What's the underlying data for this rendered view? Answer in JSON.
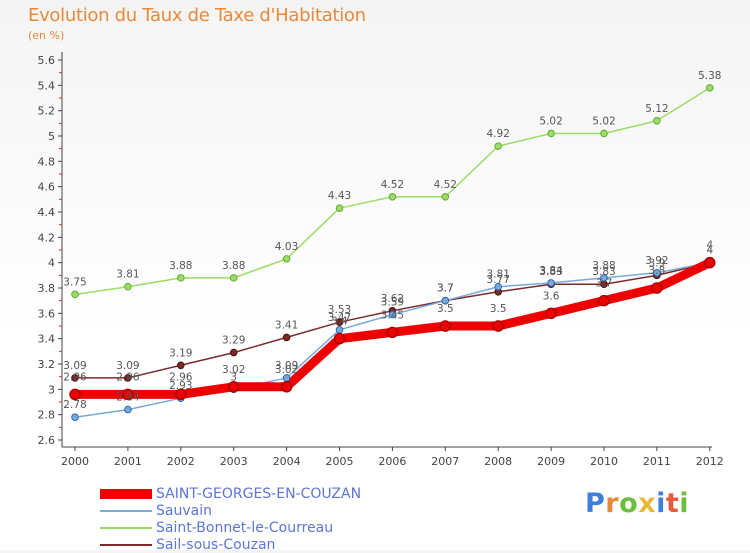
{
  "title": "Evolution du Taux de Taxe d'Habitation",
  "subtitle": "(en %)",
  "logo": "Proxiti",
  "chart_data": {
    "type": "line",
    "title": "Evolution du Taux de Taxe d'Habitation",
    "ylabel": "(en %)",
    "xlabel": "",
    "ylim": [
      2.6,
      5.6
    ],
    "ytick_step": 0.2,
    "grid": false,
    "legend_position": "bottom-left",
    "categories": [
      "2000",
      "2001",
      "2002",
      "2003",
      "2004",
      "2005",
      "2006",
      "2007",
      "2008",
      "2009",
      "2010",
      "2011",
      "2012"
    ],
    "yticks": [
      "2.6",
      "2.8",
      "3",
      "3.2",
      "3.4",
      "3.6",
      "3.8",
      "4",
      "4.2",
      "4.4",
      "4.6",
      "4.8",
      "5",
      "5.2",
      "5.4",
      "5.6"
    ],
    "series": [
      {
        "name": "Saint-Bonnet-le-Courreau",
        "color": "#99dd66",
        "values": [
          3.75,
          3.81,
          3.88,
          3.88,
          4.03,
          4.43,
          4.52,
          4.52,
          4.92,
          5.02,
          5.02,
          5.12,
          5.38
        ],
        "labels": [
          "3.75",
          "3.81",
          "3.88",
          "3.88",
          "4.03",
          "4.43",
          "4.52",
          "4.52",
          "4.92",
          "5.02",
          "5.02",
          "5.12",
          "5.38"
        ]
      },
      {
        "name": "Sail-sous-Couzan",
        "color": "#7a2a2a",
        "values": [
          3.09,
          3.09,
          3.19,
          3.29,
          3.41,
          3.53,
          3.62,
          3.7,
          3.77,
          3.83,
          3.83,
          3.9,
          4
        ],
        "labels": [
          "3.09",
          "3.09",
          "3.19",
          "3.29",
          "3.41",
          "3.53",
          "3.62",
          "3.7",
          "3.77",
          "3.83",
          "3.83",
          "3.9",
          "4"
        ]
      },
      {
        "name": "Sauvain",
        "color": "#77aadd",
        "values": [
          2.78,
          2.84,
          2.93,
          3,
          3.09,
          3.47,
          3.59,
          3.7,
          3.81,
          3.84,
          3.88,
          3.92,
          4
        ],
        "labels": [
          "2.78",
          "2.84",
          "2.93",
          "3",
          "3.09",
          "3.47",
          "3.59",
          "3.7",
          "3.81",
          "3.84",
          "3.88",
          "3.92",
          "4"
        ]
      },
      {
        "name": "SAINT-GEORGES-EN-COUZAN",
        "color": "#ee0000",
        "values": [
          2.96,
          2.96,
          2.96,
          3.02,
          3.02,
          3.4,
          3.45,
          3.5,
          3.5,
          3.6,
          3.7,
          3.8,
          4
        ],
        "labels": [
          "2.96",
          "2.96",
          "2.96",
          "3.02",
          "3.02",
          "3.4",
          "3.45",
          "3.5",
          "3.5",
          "3.6",
          "3.7",
          "3.8",
          "4"
        ]
      }
    ],
    "legend": [
      {
        "name": "SAINT-GEORGES-EN-COUZAN",
        "color": "#ee0000",
        "text_color": "#5b76d8"
      },
      {
        "name": "Sauvain",
        "color": "#77aadd",
        "text_color": "#5b76d8"
      },
      {
        "name": "Saint-Bonnet-le-Courreau",
        "color": "#99dd66",
        "text_color": "#5b76d8"
      },
      {
        "name": "Sail-sous-Couzan",
        "color": "#7a2a2a",
        "text_color": "#5b76d8"
      }
    ]
  }
}
